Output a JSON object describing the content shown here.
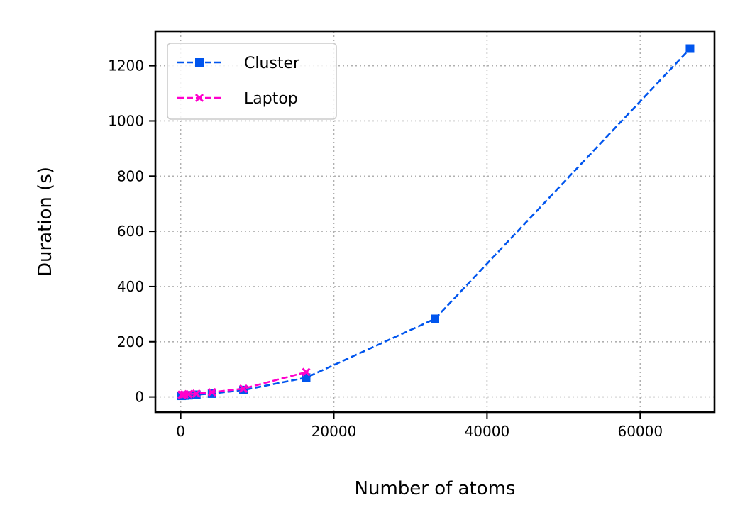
{
  "chart_data": {
    "type": "line",
    "title": "",
    "xlabel": "Number of atoms",
    "ylabel": "Duration (s)",
    "xlim": [
      -3300,
      69700
    ],
    "ylim": [
      -55,
      1325
    ],
    "xticks": [
      0,
      20000,
      40000,
      60000
    ],
    "yticks": [
      0,
      200,
      400,
      600,
      800,
      1000,
      1200
    ],
    "grid": true,
    "legend_position": "top-left",
    "series": [
      {
        "name": "Cluster",
        "color": "#0055ee",
        "marker": "square",
        "line_style": "dashed",
        "x": [
          128,
          256,
          512,
          1024,
          2048,
          4096,
          8192,
          16384,
          33200,
          66500
        ],
        "y": [
          4,
          5,
          5,
          6,
          8,
          12,
          25,
          70,
          283,
          1262
        ]
      },
      {
        "name": "Laptop",
        "color": "#ff00cc",
        "marker": "x",
        "line_style": "dashed",
        "x": [
          128,
          256,
          512,
          1024,
          2048,
          4096,
          8192,
          16384
        ],
        "y": [
          8,
          8,
          9,
          10,
          12,
          17,
          30,
          90
        ]
      }
    ]
  }
}
